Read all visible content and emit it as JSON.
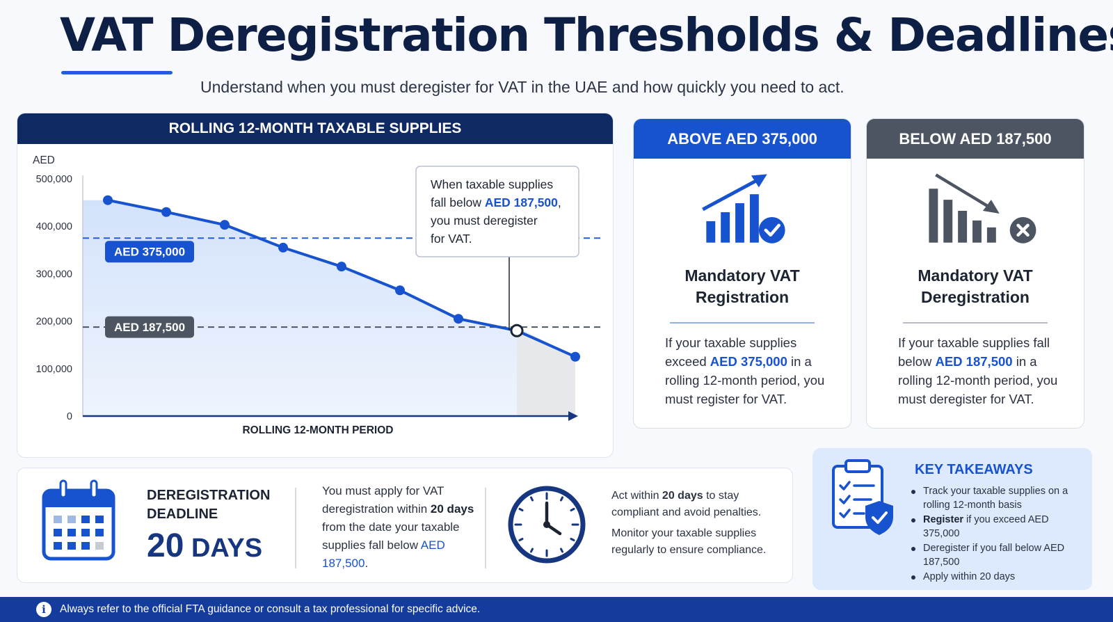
{
  "header": {
    "title": "VAT Deregistration Thresholds & Deadlines",
    "subtitle": "Understand when you must deregister for VAT in the UAE and how quickly you need to act."
  },
  "chart_panel": {
    "header": "ROLLING 12-MONTH TAXABLE SUPPLIES",
    "callout_lines": [
      "When taxable supplies",
      "fall below ",
      "AED 187,500",
      ",",
      "you must deregister",
      "for VAT."
    ]
  },
  "chart_data": {
    "type": "line",
    "title": "ROLLING 12-MONTH TAXABLE SUPPLIES",
    "xlabel": "ROLLING 12-MONTH PERIOD",
    "ylabel": "AED",
    "ylim": [
      0,
      500000
    ],
    "yticks": [
      "500,000",
      "400,000",
      "300,000",
      "200,000",
      "100,000",
      "0"
    ],
    "x": [
      1,
      2,
      3,
      4,
      5,
      6,
      7,
      8,
      9
    ],
    "values": [
      455000,
      430000,
      403000,
      355000,
      315000,
      265000,
      205000,
      180000,
      125000
    ],
    "thresholds": [
      {
        "label": "AED 375,000",
        "value": 375000,
        "color": "#1f5fd9"
      },
      {
        "label": "AED 187,500",
        "value": 187500,
        "color": "#4c5561"
      }
    ],
    "crossing": {
      "value": 187500,
      "x": 8
    },
    "grid": false,
    "legend": "none",
    "colors": {
      "line": "#1753cf",
      "fill": "#dbe7fb",
      "shade": "#e6e8ec"
    }
  },
  "cards": {
    "above": {
      "header": "ABOVE AED 375,000",
      "icon": "bar-chart-up-check-icon",
      "title_line1": "Mandatory VAT",
      "title_line2": "Registration",
      "body_pre": "If your taxable supplies exceed ",
      "body_hl": "AED 375,000",
      "body_post": " in a rolling 12-month period, you must register for VAT."
    },
    "below": {
      "header": "BELOW AED 187,500",
      "icon": "bar-chart-down-x-icon",
      "title_line1": "Mandatory VAT",
      "title_line2": "Deregistration",
      "body_pre": "If your taxable supplies fall below ",
      "body_hl": "AED 187,500",
      "body_post": " in a rolling 12-month period, you must deregister for VAT."
    }
  },
  "deadline": {
    "icon": "calendar-icon",
    "label_line1": "DEREGISTRATION",
    "label_line2": "DEADLINE",
    "days_num": "20",
    "days_unit": " DAYS",
    "text_pre": "You must apply for VAT deregistration within ",
    "text_bold": "20 days",
    "text_mid": " from the date your taxable supplies fall below ",
    "text_hl": "AED 187,500",
    "text_end": ".",
    "clock_icon": "clock-icon",
    "right_p1_pre": "Act within ",
    "right_p1_bold": "20 days",
    "right_p1_post": " to stay compliant and avoid penalties.",
    "right_p2": "Monitor your taxable supplies regularly to ensure compliance."
  },
  "takeaways": {
    "icon": "clipboard-check-shield-icon",
    "title": "KEY TAKEAWAYS",
    "item1": "Track your taxable supplies on a rolling 12-month basis",
    "item2_bold": "Register",
    "item2_rest": " if you exceed AED 375,000",
    "item3": "Deregister if you fall below AED 187,500",
    "item4": "Apply within 20 days"
  },
  "footer": {
    "icon": "info-icon",
    "text": "Always refer to the official FTA guidance or consult a tax professional for specific advice."
  }
}
